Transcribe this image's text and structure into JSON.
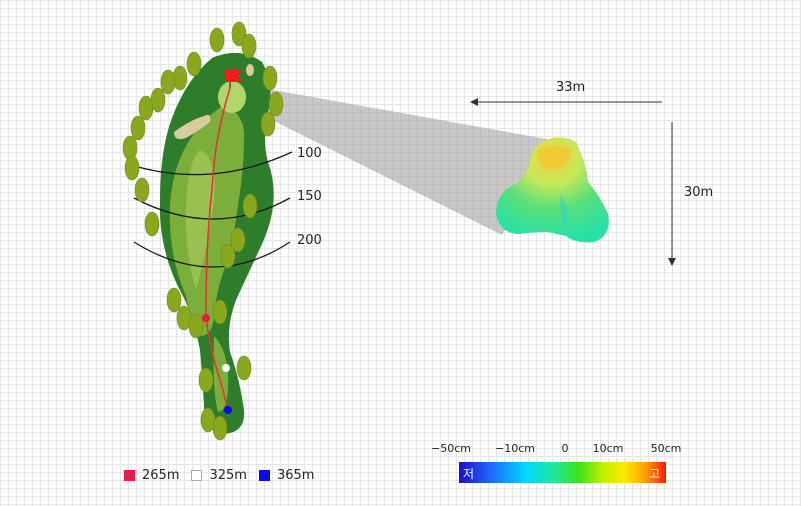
{
  "distance_markers": [
    "100",
    "150",
    "200"
  ],
  "dimensions": {
    "width": "33m",
    "height": "30m"
  },
  "legend": [
    {
      "color": "#e8194c",
      "label": "265m"
    },
    {
      "color": "#ffffff",
      "label": "325m"
    },
    {
      "color": "#0a0aee",
      "label": "365m"
    }
  ],
  "elevation_scale": {
    "labels": [
      "−50cm",
      "−10cm",
      "0",
      "10cm",
      "50cm"
    ],
    "low": "저",
    "high": "고"
  },
  "colors": {
    "rough": "#2e7d2a",
    "fairway": "#7bae3a",
    "green": "#b2d66a",
    "flag": "#ff1a1a",
    "shot_line": "#e83030",
    "tree": "#8aa81e"
  }
}
